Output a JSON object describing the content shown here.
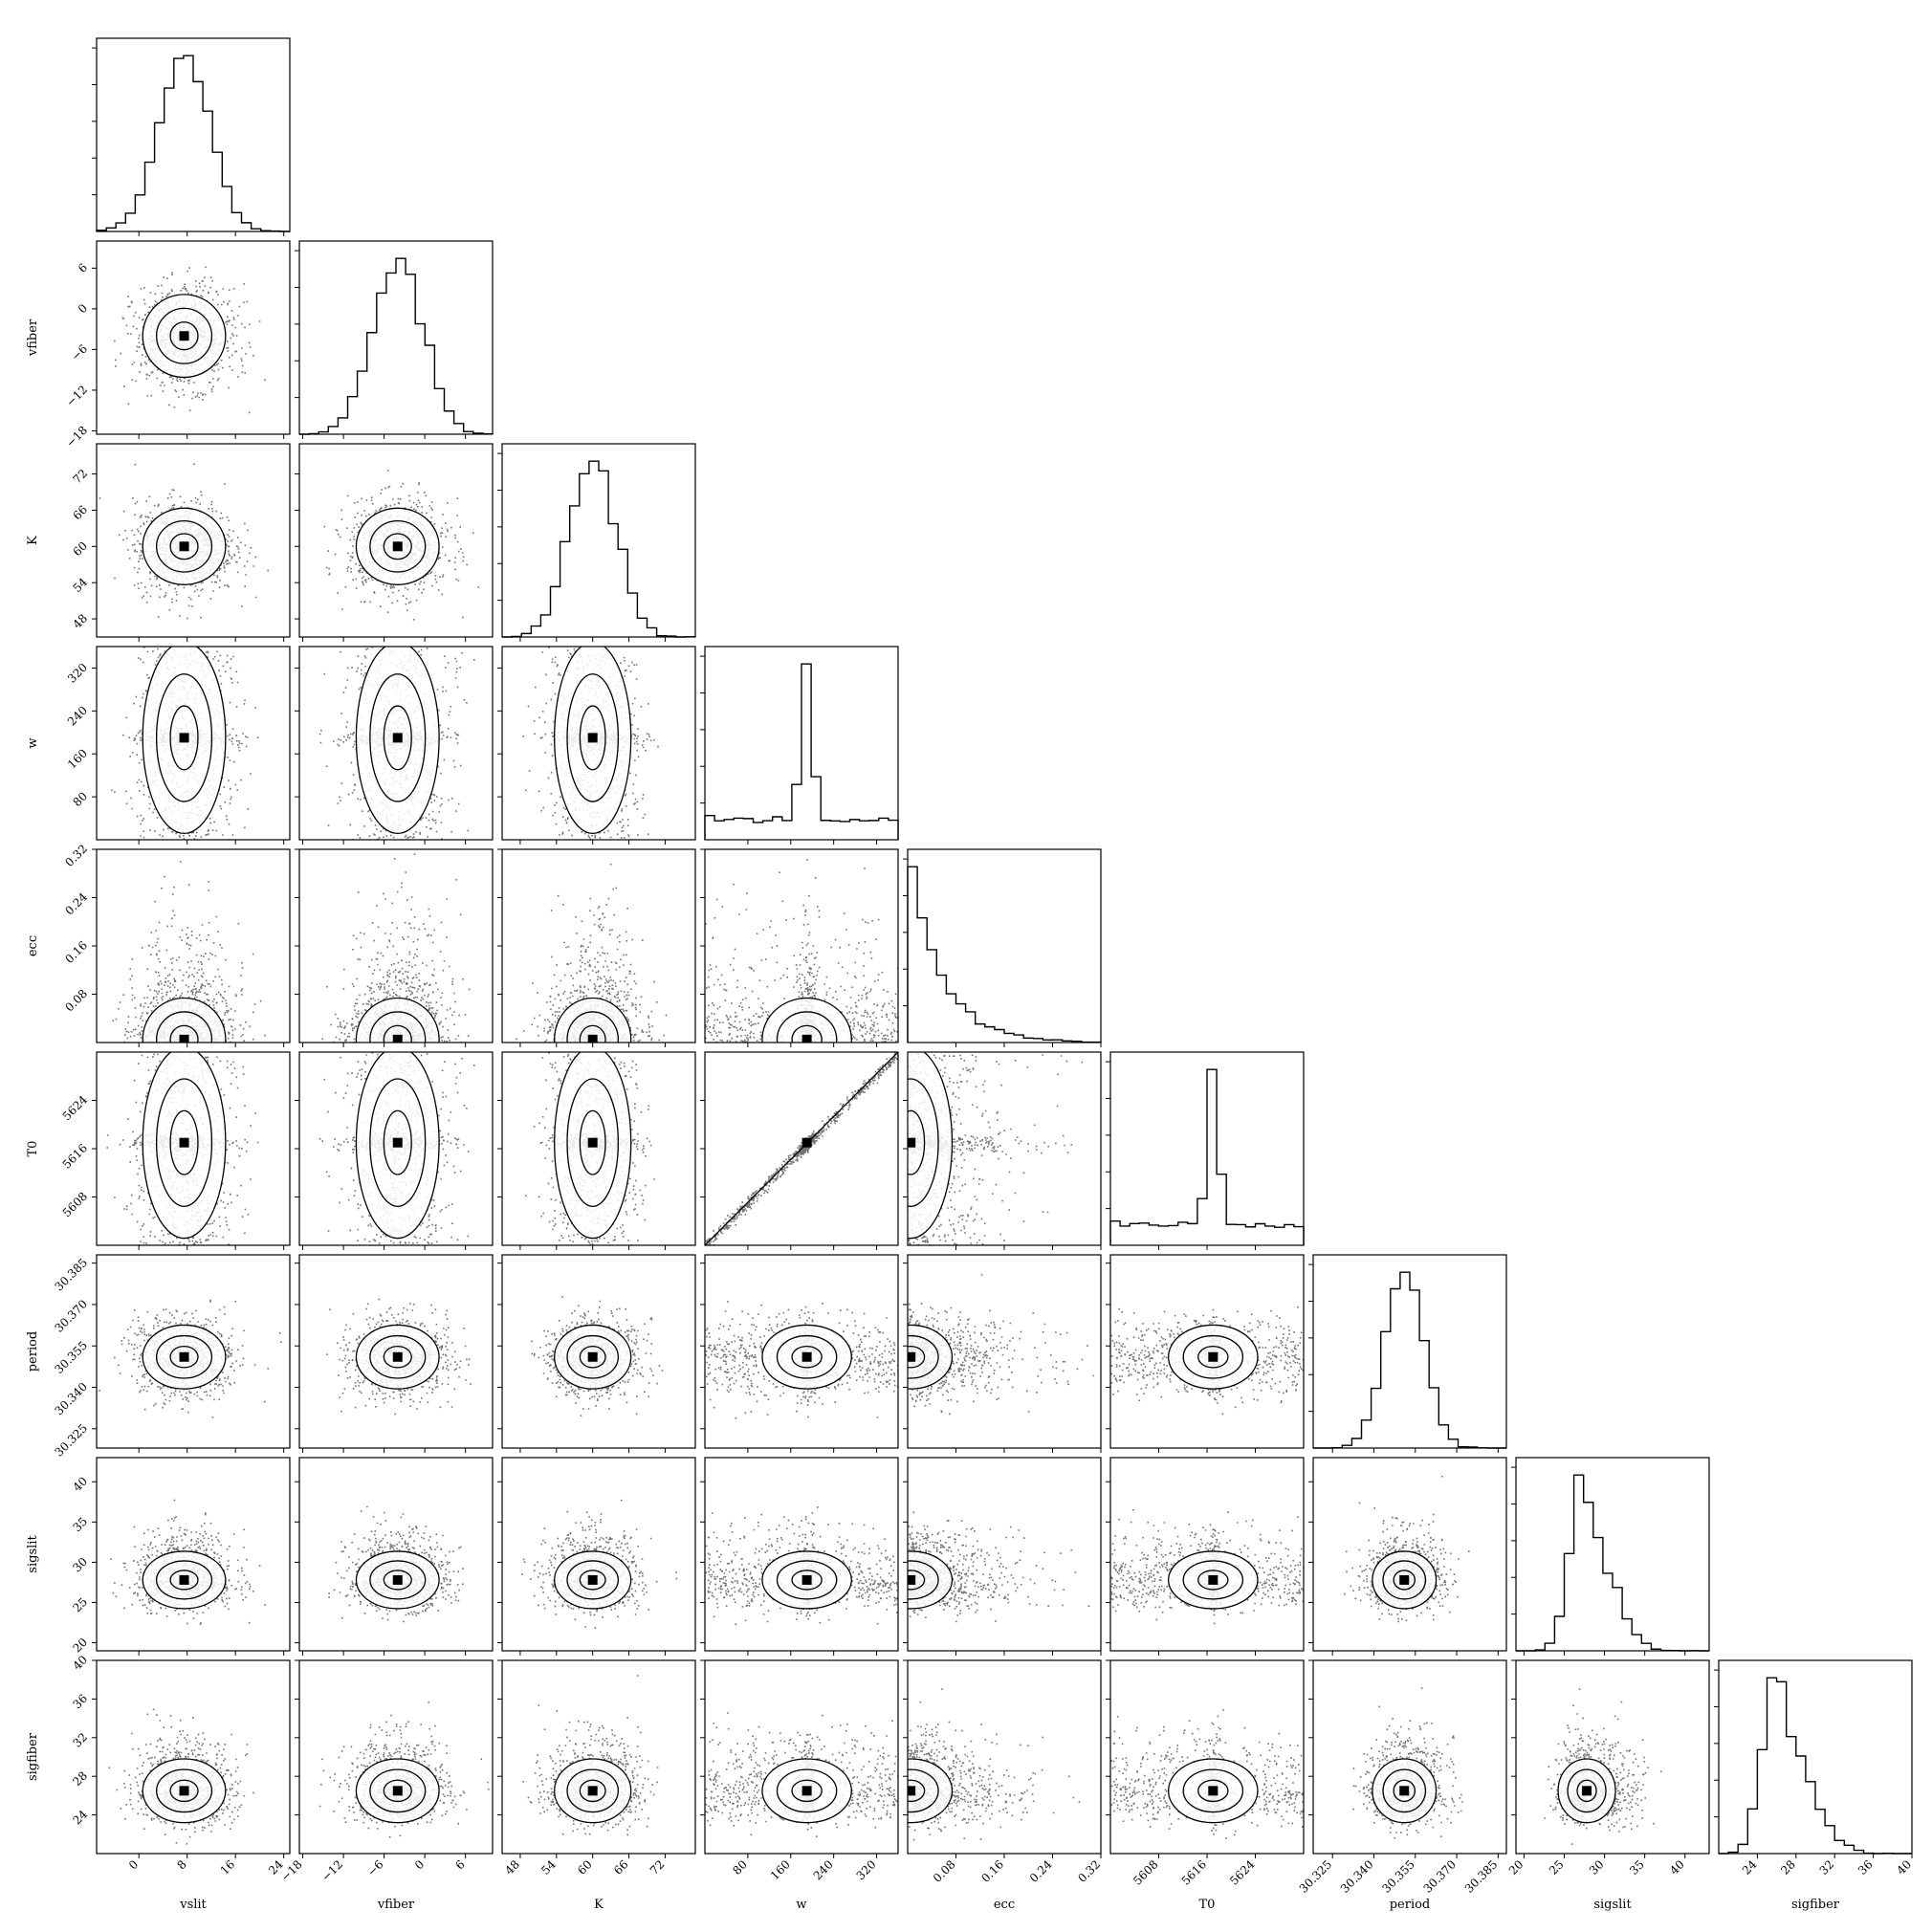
{
  "chart_data": {
    "type": "corner",
    "parameters": [
      {
        "name": "vslit",
        "label": "vslit",
        "range": [
          -7,
          25
        ],
        "ticks": [
          0,
          8,
          16,
          24
        ],
        "tick_labels": [
          "0",
          "8",
          "16",
          "24"
        ],
        "peak": 7.5,
        "dist": "normal",
        "sigma_frac": 0.13
      },
      {
        "name": "vfiber",
        "label": "vfiber",
        "range": [
          -18.5,
          10
        ],
        "ticks": [
          -18,
          -12,
          -6,
          0,
          6
        ],
        "tick_labels": [
          "−18",
          "−12",
          "−6",
          "0",
          "6"
        ],
        "peak": -4,
        "dist": "normal",
        "sigma_frac": 0.13
      },
      {
        "name": "K",
        "label": "K",
        "range": [
          45,
          77
        ],
        "ticks": [
          48,
          54,
          60,
          66,
          72
        ],
        "tick_labels": [
          "48",
          "54",
          "60",
          "66",
          "72"
        ],
        "peak": 60,
        "dist": "normal",
        "sigma_frac": 0.12
      },
      {
        "name": "w",
        "label": "w",
        "range": [
          0,
          360
        ],
        "ticks": [
          80,
          160,
          240,
          320
        ],
        "tick_labels": [
          "80",
          "160",
          "240",
          "320"
        ],
        "peak": 190,
        "dist": "spike"
      },
      {
        "name": "ecc",
        "label": "ecc",
        "range": [
          0,
          0.32
        ],
        "ticks": [
          0.08,
          0.16,
          0.24,
          0.32
        ],
        "tick_labels": [
          "0.08",
          "0.16",
          "0.24",
          "0.32"
        ],
        "peak": 0.005,
        "dist": "exp"
      },
      {
        "name": "T0",
        "label": "T0",
        "range": [
          5600,
          5632
        ],
        "ticks": [
          5608,
          5616,
          5624
        ],
        "tick_labels": [
          "5608",
          "5616",
          "5624"
        ],
        "peak": 5617,
        "dist": "spike"
      },
      {
        "name": "period",
        "label": "period",
        "range": [
          30.318,
          30.388
        ],
        "ticks": [
          30.325,
          30.34,
          30.355,
          30.37,
          30.385
        ],
        "tick_labels": [
          "30.325",
          "30.340",
          "30.355",
          "30.370",
          "30.385"
        ],
        "peak": 30.351,
        "dist": "normal",
        "sigma_frac": 0.1
      },
      {
        "name": "sigslit",
        "label": "sigslit",
        "range": [
          19,
          43
        ],
        "ticks": [
          20,
          25,
          30,
          35,
          40
        ],
        "tick_labels": [
          "20",
          "25",
          "30",
          "35",
          "40"
        ],
        "peak": 27.8,
        "dist": "skew",
        "sigma_frac": 0.09
      },
      {
        "name": "sigfiber",
        "label": "sigfiber",
        "range": [
          20,
          40
        ],
        "ticks": [
          24,
          28,
          32,
          36,
          40
        ],
        "tick_labels": [
          "24",
          "28",
          "32",
          "36",
          "40"
        ],
        "peak": 26.5,
        "dist": "skew",
        "sigma_frac": 0.1
      }
    ],
    "grid": false,
    "legend": "none",
    "histogram_bins": 20,
    "contour_levels": 3,
    "colors": {
      "line": "#000000",
      "background": "#ffffff",
      "density": "#000000"
    }
  }
}
